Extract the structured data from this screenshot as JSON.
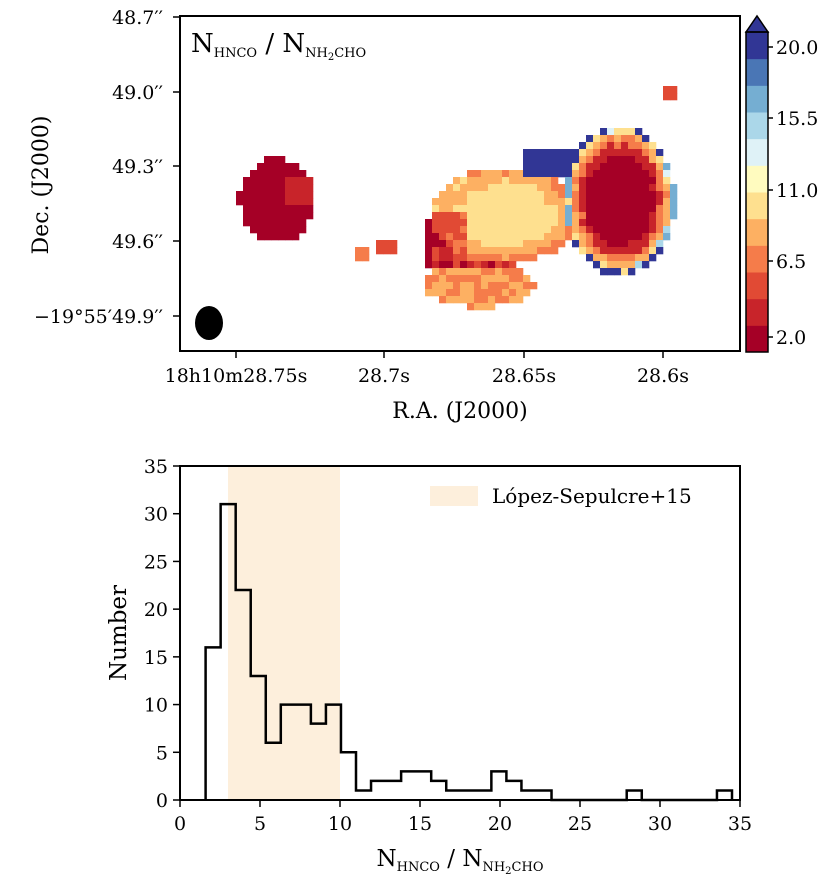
{
  "chart_data": [
    {
      "type": "heatmap",
      "title": "N_HNCO / N_NH2CHO",
      "title_parts": {
        "main": "N",
        "sub1": "HNCO",
        "sep": " / N",
        "sub2a": "NH",
        "sub2b": "2",
        "sub2c": "CHO"
      },
      "xlabel": "R.A. (J2000)",
      "ylabel": "Dec. (J2000)",
      "xticks": [
        "18h10m28.75s",
        "28.7s",
        "28.65s",
        "28.6s"
      ],
      "yticks": [
        "48.7′′",
        "49.0′′",
        "49.3′′",
        "49.6′′",
        "−19°55′49.9′′"
      ],
      "colorbar": {
        "ticks": [
          "20.0",
          "15.5",
          "11.0",
          "6.5",
          "2.0"
        ],
        "range": [
          0.5,
          21.5
        ],
        "extend": "max",
        "colors": [
          "#a50026",
          "#c8242a",
          "#e14a34",
          "#f57c4a",
          "#fdb062",
          "#fee08f",
          "#fffbbf",
          "#dff2f7",
          "#abd7e9",
          "#75aed2",
          "#4a76b5",
          "#313695"
        ]
      },
      "beam": "ellipse"
    },
    {
      "type": "bar",
      "xlabel": "N_HNCO / N_NH2CHO",
      "ylabel": "Number",
      "xlim": [
        0,
        35
      ],
      "ylim": [
        0,
        35
      ],
      "xticks": [
        "0",
        "5",
        "10",
        "15",
        "20",
        "25",
        "30",
        "35"
      ],
      "yticks": [
        "0",
        "5",
        "10",
        "15",
        "20",
        "25",
        "30",
        "35"
      ],
      "bin_width": 0.94,
      "bin_start": 1.6,
      "counts": [
        16,
        31,
        22,
        13,
        6,
        10,
        10,
        8,
        10,
        5,
        1,
        2,
        2,
        3,
        3,
        2,
        1,
        1,
        1,
        3,
        2,
        1,
        1,
        0,
        0,
        0,
        0,
        0,
        1,
        0,
        0,
        0,
        0,
        0,
        1
      ],
      "span": {
        "from": 3.0,
        "to": 10.0,
        "label": "López-Sepulcre+15",
        "color": "#fdefdc"
      }
    }
  ]
}
